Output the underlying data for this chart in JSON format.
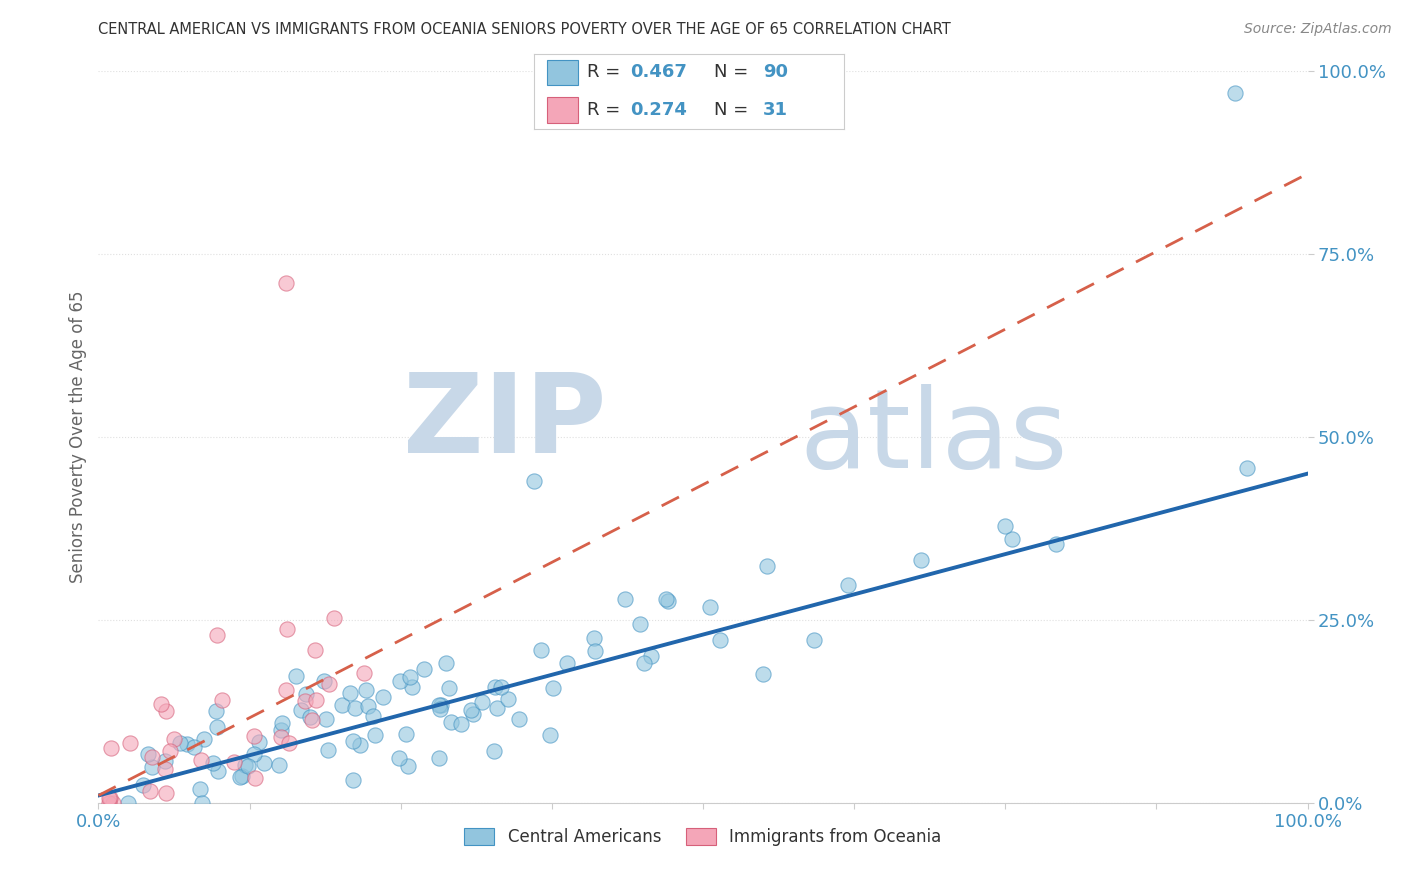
{
  "title": "CENTRAL AMERICAN VS IMMIGRANTS FROM OCEANIA SENIORS POVERTY OVER THE AGE OF 65 CORRELATION CHART",
  "source": "Source: ZipAtlas.com",
  "ylabel": "Seniors Poverty Over the Age of 65",
  "xlim": [
    0,
    1
  ],
  "ylim": [
    0,
    1
  ],
  "xticks": [
    0,
    0.125,
    0.25,
    0.375,
    0.5,
    0.625,
    0.75,
    0.875,
    1.0
  ],
  "yticks": [
    0,
    0.25,
    0.5,
    0.75,
    1.0
  ],
  "xticklabels_shown": [
    "0.0%",
    "",
    "",
    "",
    "",
    "",
    "",
    "",
    "100.0%"
  ],
  "yticklabels": [
    "0.0%",
    "25.0%",
    "50.0%",
    "75.0%",
    "100.0%"
  ],
  "blue_R": 0.467,
  "blue_N": 90,
  "pink_R": 0.274,
  "pink_N": 31,
  "blue_color": "#92c5de",
  "pink_color": "#f4a6b8",
  "blue_edge_color": "#4393c3",
  "pink_edge_color": "#d6607a",
  "blue_line_color": "#2166ac",
  "pink_line_color": "#d6604a",
  "pink_dash_color": "#d6604a",
  "watermark_zip": "ZIP",
  "watermark_atlas": "atlas",
  "watermark_color": "#c8d8e8",
  "title_color": "#333333",
  "source_color": "#888888",
  "tick_label_color": "#4393c3",
  "axis_label_color": "#666666",
  "legend_label1": "Central Americans",
  "legend_label2": "Immigrants from Oceania",
  "blue_seed": 42,
  "pink_seed": 7,
  "blue_slope": 0.44,
  "blue_intercept": 0.01,
  "pink_slope": 0.85,
  "pink_intercept": 0.01,
  "grid_color": "#e0e0e0",
  "background_color": "#ffffff",
  "fig_width": 14.06,
  "fig_height": 8.92,
  "dpi": 100
}
